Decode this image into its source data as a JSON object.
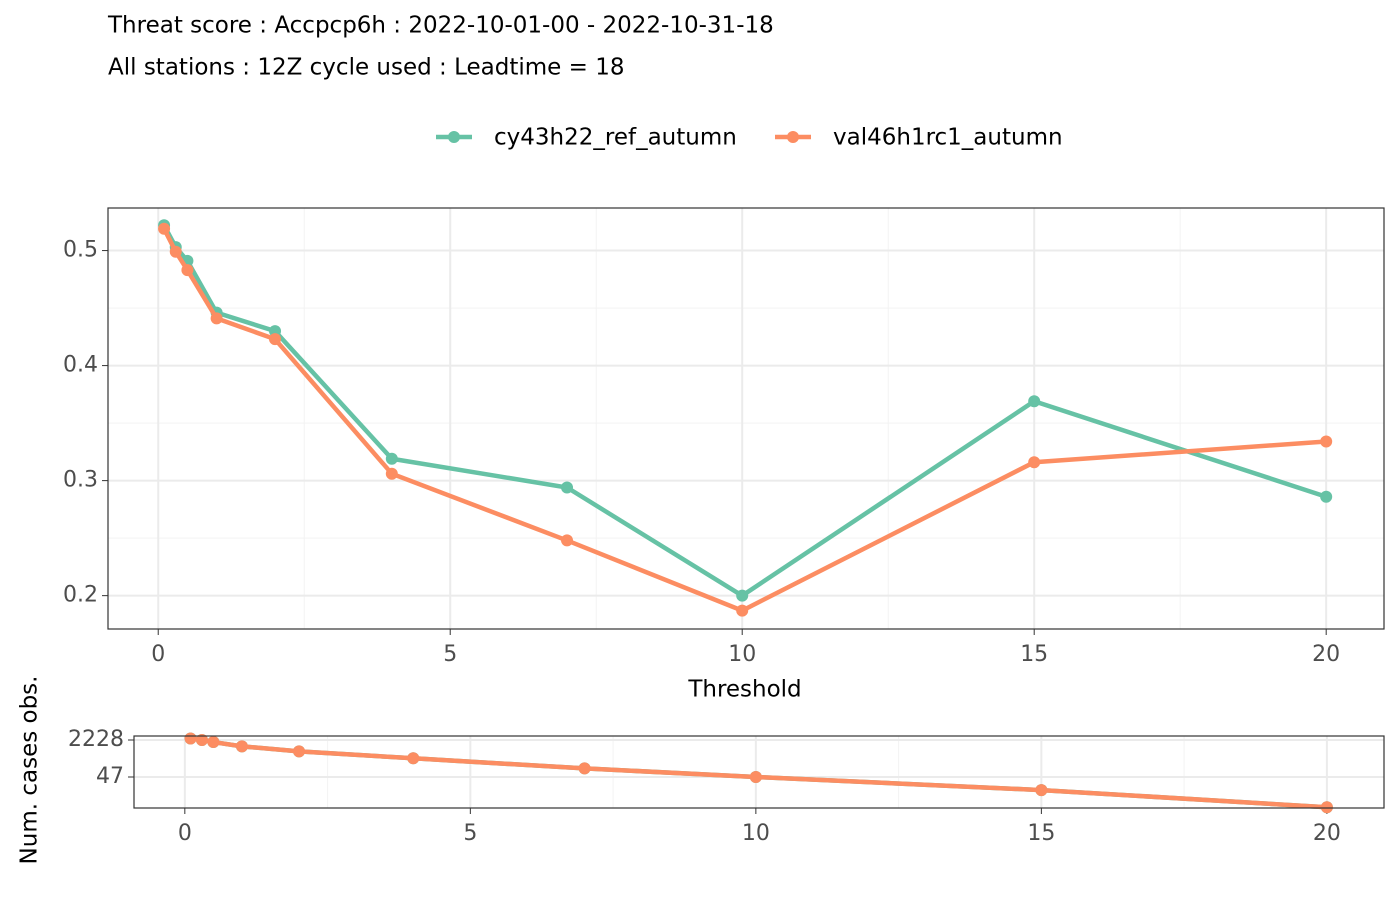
{
  "chart_data": [
    {
      "type": "line",
      "title": "Threat score : Accpcp6h : 2022-10-01-00 - 2022-10-31-18",
      "subtitle": "All stations : 12Z cycle used : Leadtime = 18",
      "x_label": "Threshold",
      "x": [
        0.1,
        0.3,
        0.5,
        1,
        2,
        4,
        7,
        10,
        15,
        20
      ],
      "series": [
        {
          "name": "cy43h22_ref_autumn",
          "color": "#66c2a5",
          "values": [
            0.522,
            0.503,
            0.491,
            0.446,
            0.43,
            0.319,
            0.294,
            0.2,
            0.369,
            0.286
          ]
        },
        {
          "name": "val46h1rc1_autumn",
          "color": "#fc8d62",
          "values": [
            0.519,
            0.499,
            0.483,
            0.441,
            0.423,
            0.306,
            0.248,
            0.187,
            0.316,
            0.334
          ]
        }
      ],
      "xlim": [
        -0.86,
        20.99
      ],
      "xticks": [
        0,
        5,
        10,
        15,
        20
      ],
      "ylim": [
        0.171,
        0.537
      ],
      "yticks": [
        0.2,
        0.3,
        0.4,
        0.5
      ],
      "grid": true,
      "legend": "top"
    },
    {
      "type": "line",
      "y_label": "Num. cases obs.",
      "x": [
        0.1,
        0.3,
        0.5,
        1,
        2,
        4,
        7,
        10,
        15,
        20
      ],
      "series": [
        {
          "color": "#66c2a5",
          "values": [
            2600,
            2228,
            1800,
            1150,
            680,
            330,
            115,
            47,
            12,
            2
          ]
        },
        {
          "color": "#fc8d62",
          "values": [
            2600,
            2228,
            1800,
            1150,
            680,
            330,
            115,
            47,
            12,
            2
          ]
        }
      ],
      "xlim": [
        -0.89,
        21.0
      ],
      "xticks": [
        0,
        5,
        10,
        15,
        20
      ],
      "ylim": [
        1.85,
        3380
      ],
      "yticks": [
        47,
        2228
      ],
      "log_y": true,
      "grid": true
    }
  ]
}
